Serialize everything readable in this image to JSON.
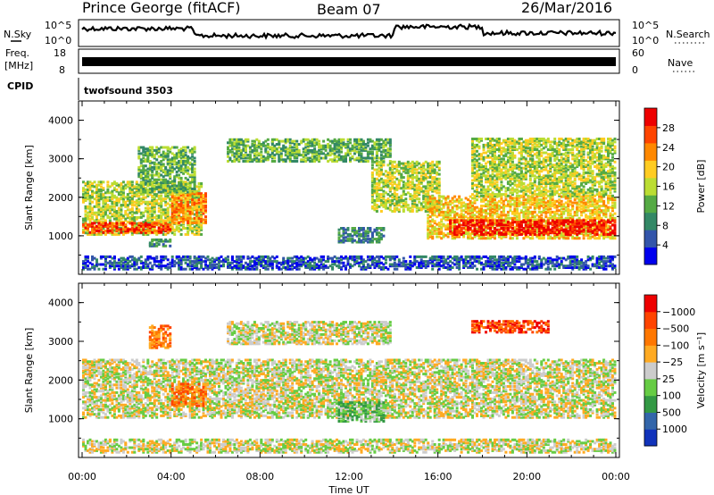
{
  "header": {
    "station": "Prince George (fitACF)",
    "beam": "Beam 07",
    "date": "26/Mar/2016"
  },
  "strips": {
    "nsky_label": "N.Sky",
    "nsky_ticks": [
      "10^5",
      "10^0"
    ],
    "nsearch_label": "N.Search",
    "nsearch_ticks": [
      "10^5",
      "10^0"
    ],
    "freq_label_line1": "Freq.",
    "freq_label_line2": "[MHz]",
    "freq_ticks": [
      "18",
      "8"
    ],
    "nave_label": "Nave",
    "nave_ticks": [
      "60",
      "0"
    ],
    "cpid_label": "CPID",
    "cpid_value": "twofsound 3503"
  },
  "chart_data": [
    {
      "type": "heatmap",
      "panel": "power",
      "ylabel": "Slant Range [km]",
      "ylim": [
        0,
        4500
      ],
      "yticks": [
        "1000",
        "2000",
        "3000",
        "4000"
      ],
      "xlim_hours": [
        0,
        24
      ],
      "colorbar": {
        "label": "Power [dB]",
        "ticks": [
          "4",
          "8",
          "12",
          "16",
          "20",
          "24",
          "28"
        ],
        "colors": [
          "#0000ee",
          "#3355aa",
          "#338866",
          "#55aa44",
          "#bbdd33",
          "#ffcc22",
          "#ff8800",
          "#ff4400",
          "#ee0000"
        ]
      },
      "regions": [
        {
          "t0": 0.0,
          "t1": 5.3,
          "r0": 1000,
          "r1": 2400,
          "level": 4
        },
        {
          "t0": 0.0,
          "t1": 4.0,
          "r0": 1050,
          "r1": 1300,
          "level": 7
        },
        {
          "t0": 4.0,
          "t1": 5.5,
          "r0": 1300,
          "r1": 2100,
          "level": 6
        },
        {
          "t0": 2.5,
          "t1": 5.0,
          "r0": 2100,
          "r1": 3300,
          "level": 3
        },
        {
          "t0": 6.5,
          "t1": 13.8,
          "r0": 2900,
          "r1": 3500,
          "level": 3
        },
        {
          "t0": 13.0,
          "t1": 16.0,
          "r0": 1600,
          "r1": 2900,
          "level": 4
        },
        {
          "t0": 15.5,
          "t1": 24.0,
          "r0": 900,
          "r1": 2000,
          "level": 5
        },
        {
          "t0": 16.5,
          "t1": 24.0,
          "r0": 1000,
          "r1": 1400,
          "level": 8
        },
        {
          "t0": 17.5,
          "t1": 24.0,
          "r0": 2000,
          "r1": 3500,
          "level": 4
        },
        {
          "t0": 11.5,
          "t1": 13.5,
          "r0": 800,
          "r1": 1200,
          "level": 2
        },
        {
          "t0": 3.0,
          "t1": 4.0,
          "r0": 700,
          "r1": 900,
          "level": 2
        },
        {
          "t0": 0.0,
          "t1": 24.0,
          "r0": 100,
          "r1": 450,
          "level": 1
        }
      ]
    },
    {
      "type": "heatmap",
      "panel": "velocity",
      "ylabel": "Slant Range [km]",
      "ylim": [
        0,
        4500
      ],
      "yticks": [
        "1000",
        "2000",
        "3000",
        "4000"
      ],
      "xlim_hours": [
        0,
        24
      ],
      "xlabel": "Time UT",
      "xticks": [
        "00:00",
        "04:00",
        "08:00",
        "12:00",
        "16:00",
        "20:00",
        "00:00"
      ],
      "colorbar": {
        "label": "Velocity [m s⁻¹]",
        "ticks": [
          "1000",
          "500",
          "100",
          "25",
          "−25",
          "−100",
          "−500",
          "−1000"
        ],
        "colors": [
          "#1133bb",
          "#3366aa",
          "#339944",
          "#66cc44",
          "#cccccc",
          "#ffaa22",
          "#ff7700",
          "#ff4400",
          "#ee0000"
        ]
      },
      "regions": [
        {
          "t0": 0.0,
          "t1": 24.0,
          "r0": 1000,
          "r1": 2500,
          "level": 4
        },
        {
          "t0": 6.5,
          "t1": 13.8,
          "r0": 2900,
          "r1": 3500,
          "level": 4
        },
        {
          "t0": 4.0,
          "t1": 5.5,
          "r0": 1300,
          "r1": 1900,
          "level": 6
        },
        {
          "t0": 17.5,
          "t1": 21.0,
          "r0": 3200,
          "r1": 3500,
          "level": 7
        },
        {
          "t0": 3.0,
          "t1": 4.0,
          "r0": 2800,
          "r1": 3400,
          "level": 6
        },
        {
          "t0": 11.5,
          "t1": 13.5,
          "r0": 900,
          "r1": 1400,
          "level": 3
        },
        {
          "t0": 0.0,
          "t1": 24.0,
          "r0": 100,
          "r1": 450,
          "level": 4
        }
      ]
    }
  ]
}
